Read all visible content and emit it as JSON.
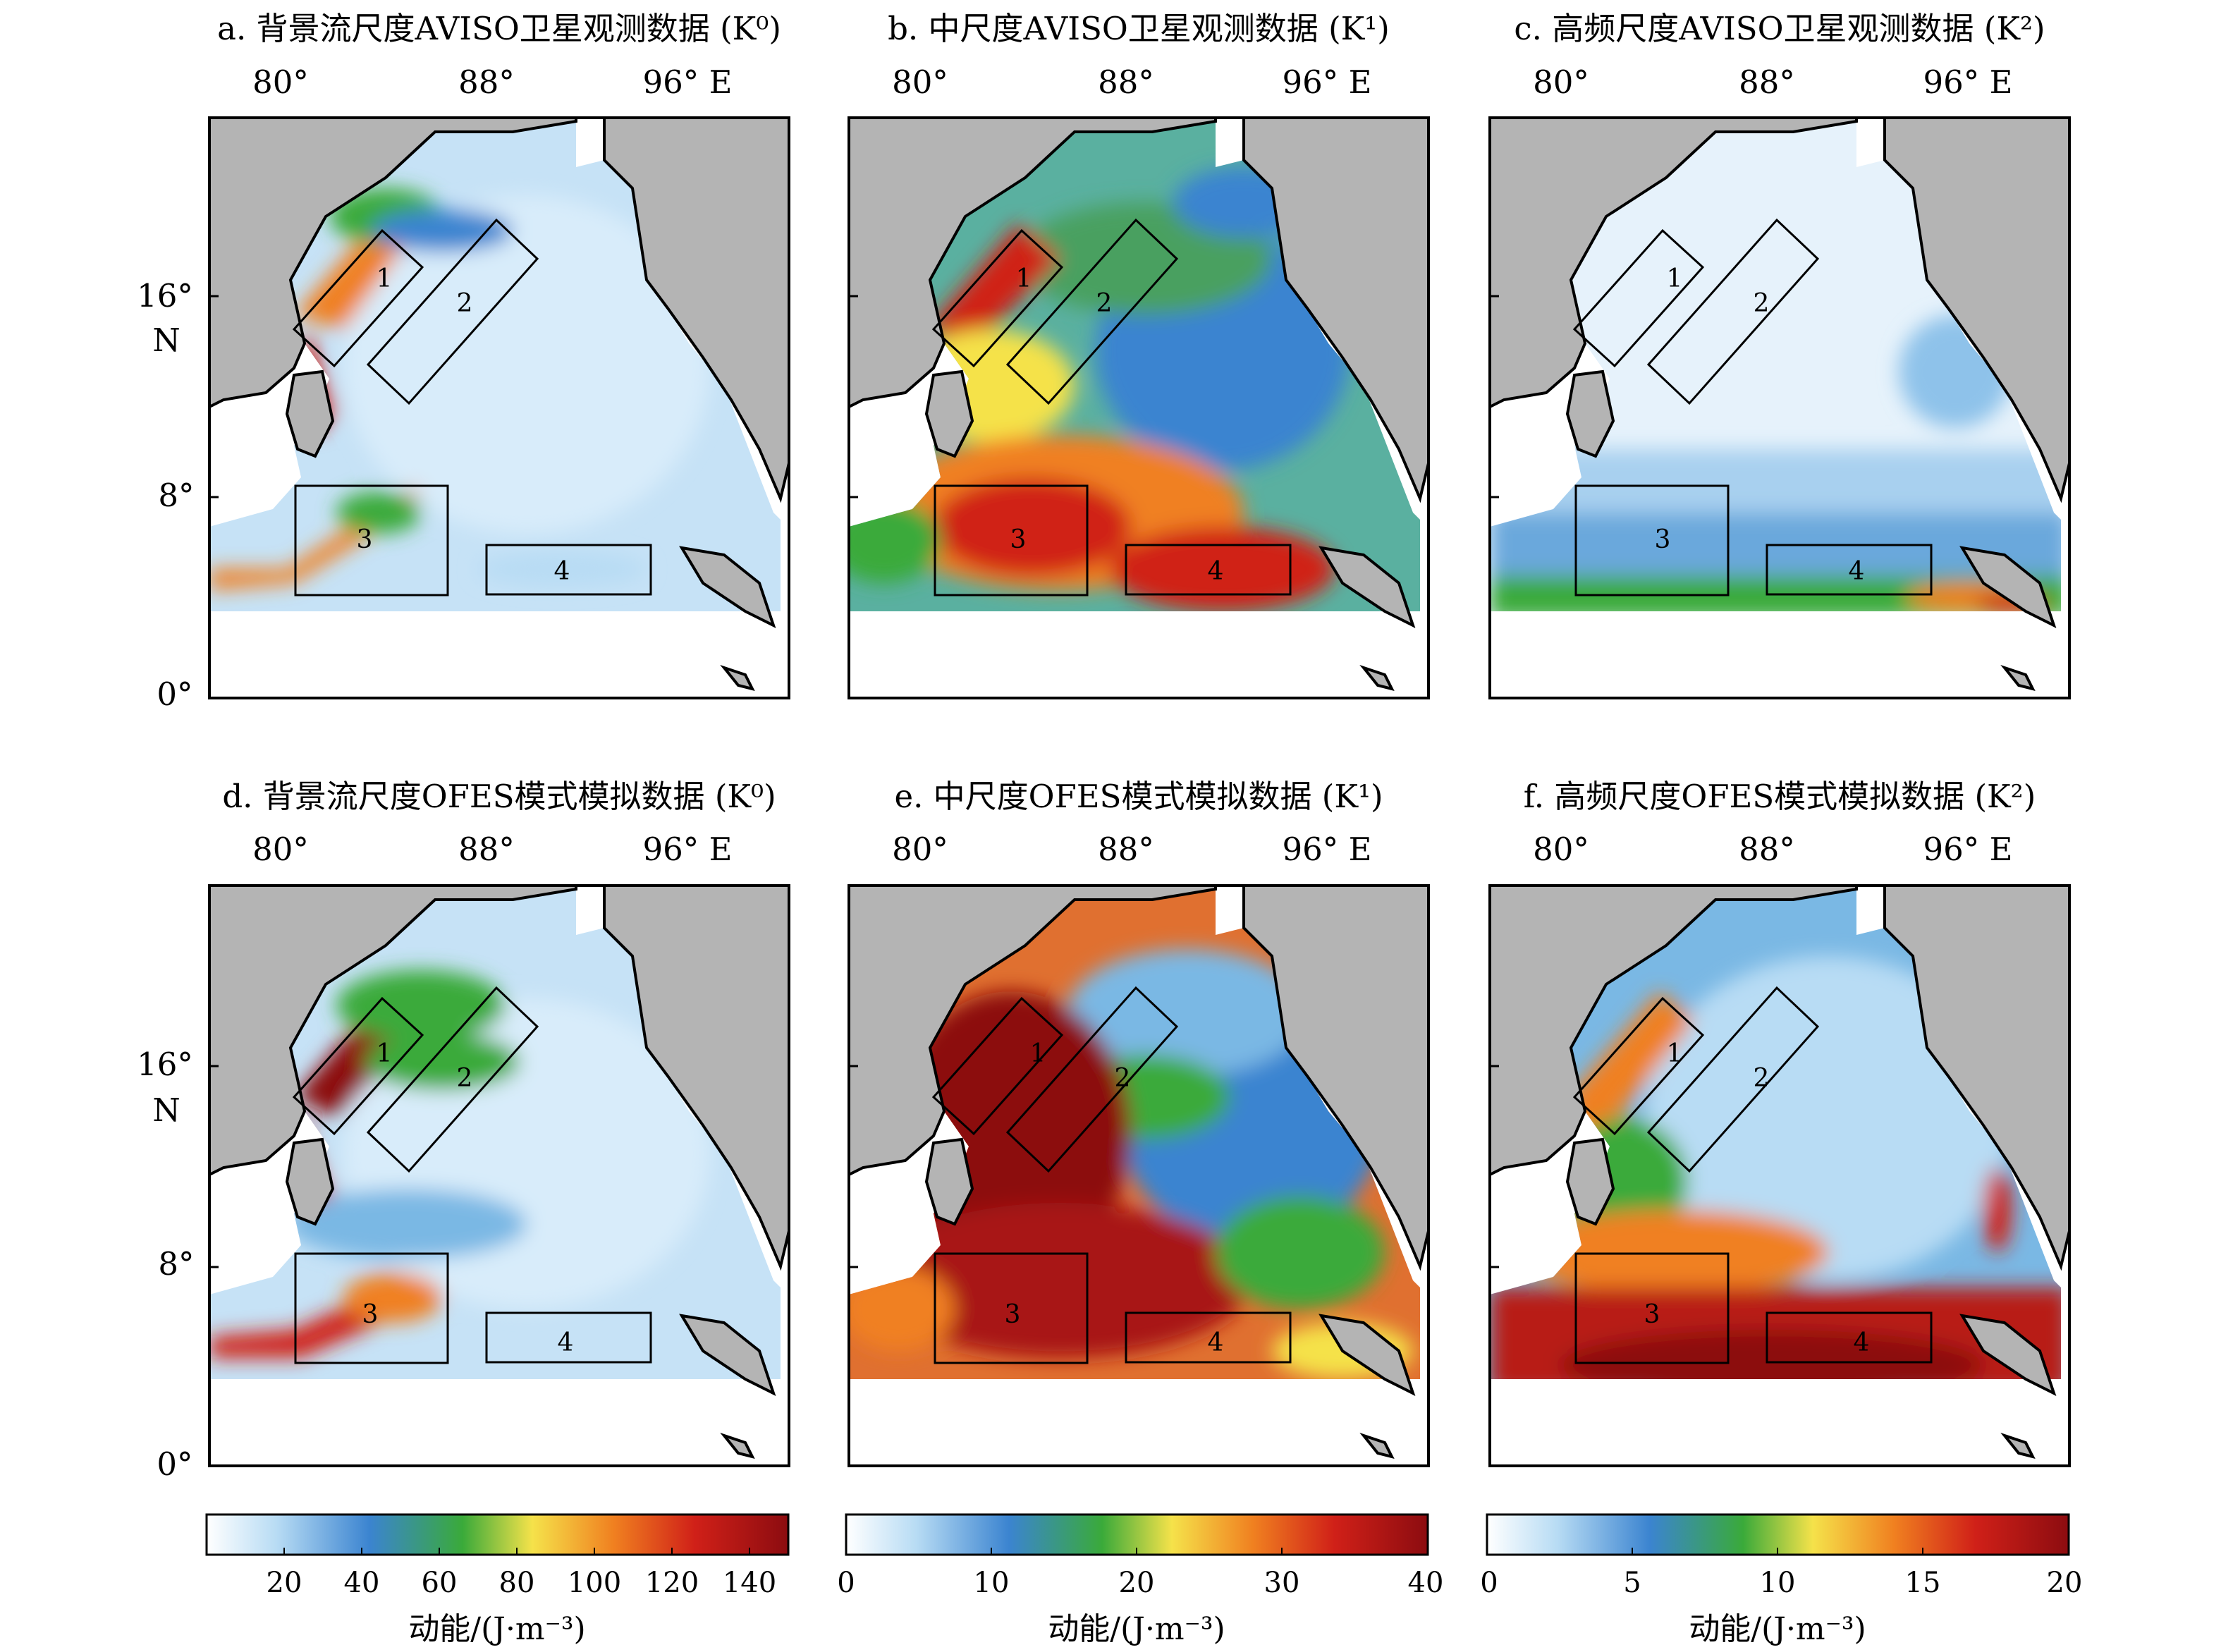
{
  "panels": [
    {
      "title": "a. 背景流尺度AVISO卫星观测数据 (K⁰)",
      "field": "K0-aviso"
    },
    {
      "title": "b. 中尺度AVISO卫星观测数据 (K¹)",
      "field": "K1-aviso"
    },
    {
      "title": "c. 高频尺度AVISO卫星观测数据 (K²)",
      "field": "K2-aviso"
    },
    {
      "title": "d. 背景流尺度OFES模式模拟数据 (K⁰)",
      "field": "K0-ofes"
    },
    {
      "title": "e. 中尺度OFES模式模拟数据 (K¹)",
      "field": "K1-ofes"
    },
    {
      "title": "f. 高频尺度OFES模式模拟数据 (K²)",
      "field": "K2-ofes"
    }
  ],
  "lon_ticks": [
    "80°",
    "88°",
    "96° E"
  ],
  "lat_ticks": [
    "16°",
    "N",
    "8°",
    "0°"
  ],
  "box_labels": [
    "1",
    "2",
    "3",
    "4"
  ],
  "colorbars": [
    {
      "ticks": [
        "20",
        "40",
        "60",
        "80",
        "100",
        "120",
        "140"
      ],
      "range": [
        0,
        150
      ],
      "label": "动能/(J·m⁻³)"
    },
    {
      "ticks": [
        "0",
        "10",
        "20",
        "30",
        "40"
      ],
      "range": [
        0,
        40
      ],
      "label": "动能/(J·m⁻³)"
    },
    {
      "ticks": [
        "0",
        "5",
        "10",
        "15",
        "20"
      ],
      "range": [
        0,
        20
      ],
      "label": "动能/(J·m⁻³)"
    }
  ],
  "colors": {
    "land": "#b4b4b4",
    "ocean_low": "#ffffff",
    "blue": "#3b84d0",
    "green": "#3aaa3a",
    "yellow": "#f5e24a",
    "orange": "#f08020",
    "red": "#d02018",
    "darkred": "#8c0c10"
  }
}
